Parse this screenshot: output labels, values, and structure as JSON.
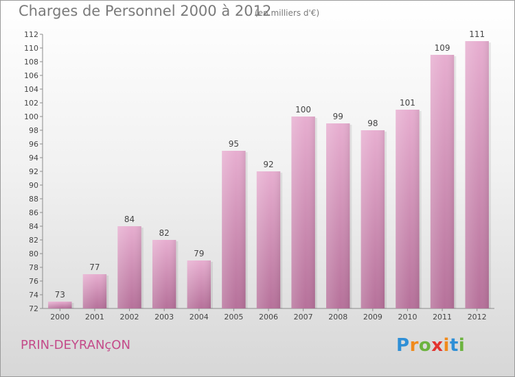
{
  "header": {
    "title": "Charges de Personnel 2000 à 2012",
    "subtitle": "(en milliers d'€)"
  },
  "footer": {
    "commune": "PRIN-DEYRANçON",
    "brand_letters": [
      "P",
      "r",
      "o",
      "x",
      "i",
      "t",
      "i"
    ]
  },
  "colors": {
    "bar_light": "#e7aed0",
    "bar_dark": "#b6719a",
    "commune_text": "#c44b8a",
    "brand": [
      "#2f8fd6",
      "#f08a1c",
      "#6cb33f",
      "#e3342f",
      "#f08a1c",
      "#2f8fd6",
      "#6cb33f"
    ]
  },
  "chart_data": {
    "type": "bar",
    "title": "Charges de Personnel 2000 à 2012",
    "subtitle": "(en milliers d'€)",
    "categories": [
      "2000",
      "2001",
      "2002",
      "2003",
      "2004",
      "2005",
      "2006",
      "2007",
      "2008",
      "2009",
      "2010",
      "2011",
      "2012"
    ],
    "values": [
      73,
      77,
      84,
      82,
      79,
      95,
      92,
      100,
      99,
      98,
      101,
      109,
      111
    ],
    "data_labels": [
      "73",
      "77",
      "84",
      "82",
      "79",
      "95",
      "92",
      "100",
      "99",
      "98",
      "101",
      "109",
      "111"
    ],
    "ylim": [
      72,
      112
    ],
    "yticks": [
      72,
      74,
      76,
      78,
      80,
      82,
      84,
      86,
      88,
      90,
      92,
      94,
      96,
      98,
      100,
      102,
      104,
      106,
      108,
      110,
      112
    ],
    "grid": false,
    "legend": "none",
    "xlabel": "",
    "ylabel": ""
  }
}
